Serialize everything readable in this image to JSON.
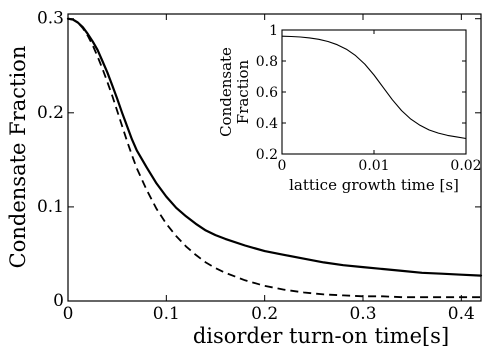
{
  "chart_data": [
    {
      "type": "line",
      "xlabel": "disorder turn-on time[s]",
      "ylabel": "Condensate Fraction",
      "xlim": [
        0,
        0.42
      ],
      "ylim": [
        0,
        0.305
      ],
      "xticks": [
        0,
        0.1,
        0.2,
        0.3,
        0.4
      ],
      "xtick_labels": [
        "0",
        "0.1",
        "0.2",
        "0.3",
        "0.4"
      ],
      "yticks": [
        0,
        0.1,
        0.2,
        0.3
      ],
      "ytick_labels": [
        "0",
        "0.1",
        "0.2",
        "0.3"
      ],
      "grid": false,
      "series": [
        {
          "style": "solid",
          "x": [
            0,
            0.005,
            0.01,
            0.015,
            0.02,
            0.025,
            0.03,
            0.035,
            0.04,
            0.045,
            0.05,
            0.055,
            0.06,
            0.065,
            0.07,
            0.08,
            0.09,
            0.1,
            0.11,
            0.12,
            0.13,
            0.14,
            0.15,
            0.16,
            0.18,
            0.2,
            0.22,
            0.24,
            0.26,
            0.28,
            0.3,
            0.32,
            0.34,
            0.36,
            0.38,
            0.4,
            0.42
          ],
          "y": [
            0.3,
            0.299,
            0.296,
            0.291,
            0.284,
            0.276,
            0.267,
            0.255,
            0.243,
            0.229,
            0.215,
            0.2,
            0.186,
            0.172,
            0.16,
            0.142,
            0.125,
            0.111,
            0.099,
            0.09,
            0.082,
            0.075,
            0.07,
            0.066,
            0.059,
            0.053,
            0.049,
            0.045,
            0.041,
            0.038,
            0.036,
            0.034,
            0.032,
            0.03,
            0.029,
            0.028,
            0.027
          ]
        },
        {
          "style": "dashed",
          "x": [
            0,
            0.005,
            0.01,
            0.015,
            0.02,
            0.025,
            0.03,
            0.035,
            0.04,
            0.045,
            0.05,
            0.055,
            0.06,
            0.065,
            0.07,
            0.08,
            0.09,
            0.1,
            0.11,
            0.12,
            0.13,
            0.14,
            0.15,
            0.16,
            0.18,
            0.2,
            0.22,
            0.24,
            0.26,
            0.28,
            0.3,
            0.32,
            0.34,
            0.36,
            0.38,
            0.4,
            0.42
          ],
          "y": [
            0.3,
            0.299,
            0.296,
            0.29,
            0.282,
            0.272,
            0.26,
            0.247,
            0.233,
            0.218,
            0.202,
            0.186,
            0.17,
            0.155,
            0.141,
            0.118,
            0.098,
            0.082,
            0.069,
            0.058,
            0.049,
            0.041,
            0.035,
            0.03,
            0.022,
            0.016,
            0.012,
            0.009,
            0.007,
            0.006,
            0.005,
            0.005,
            0.004,
            0.004,
            0.004,
            0.004,
            0.004
          ]
        }
      ]
    },
    {
      "type": "line",
      "xlabel": "lattice growth time [s]",
      "ylabel": "Condensate Fraction",
      "xlim": [
        0,
        0.02
      ],
      "ylim": [
        0.2,
        1
      ],
      "xticks": [
        0,
        0.01,
        0.02
      ],
      "xtick_labels": [
        "0",
        "0.01",
        "0.02"
      ],
      "yticks": [
        0.2,
        0.4,
        0.6,
        0.8,
        1
      ],
      "ytick_labels": [
        "0.2",
        "0.4",
        "0.6",
        "0.8",
        "1"
      ],
      "grid": false,
      "series": [
        {
          "style": "solid",
          "x": [
            0,
            0.001,
            0.002,
            0.003,
            0.004,
            0.005,
            0.006,
            0.007,
            0.008,
            0.009,
            0.01,
            0.011,
            0.012,
            0.013,
            0.014,
            0.015,
            0.016,
            0.017,
            0.018,
            0.019,
            0.02
          ],
          "y": [
            0.96,
            0.958,
            0.955,
            0.949,
            0.94,
            0.926,
            0.905,
            0.876,
            0.835,
            0.78,
            0.71,
            0.63,
            0.55,
            0.48,
            0.425,
            0.385,
            0.355,
            0.335,
            0.32,
            0.31,
            0.3
          ]
        }
      ]
    }
  ]
}
